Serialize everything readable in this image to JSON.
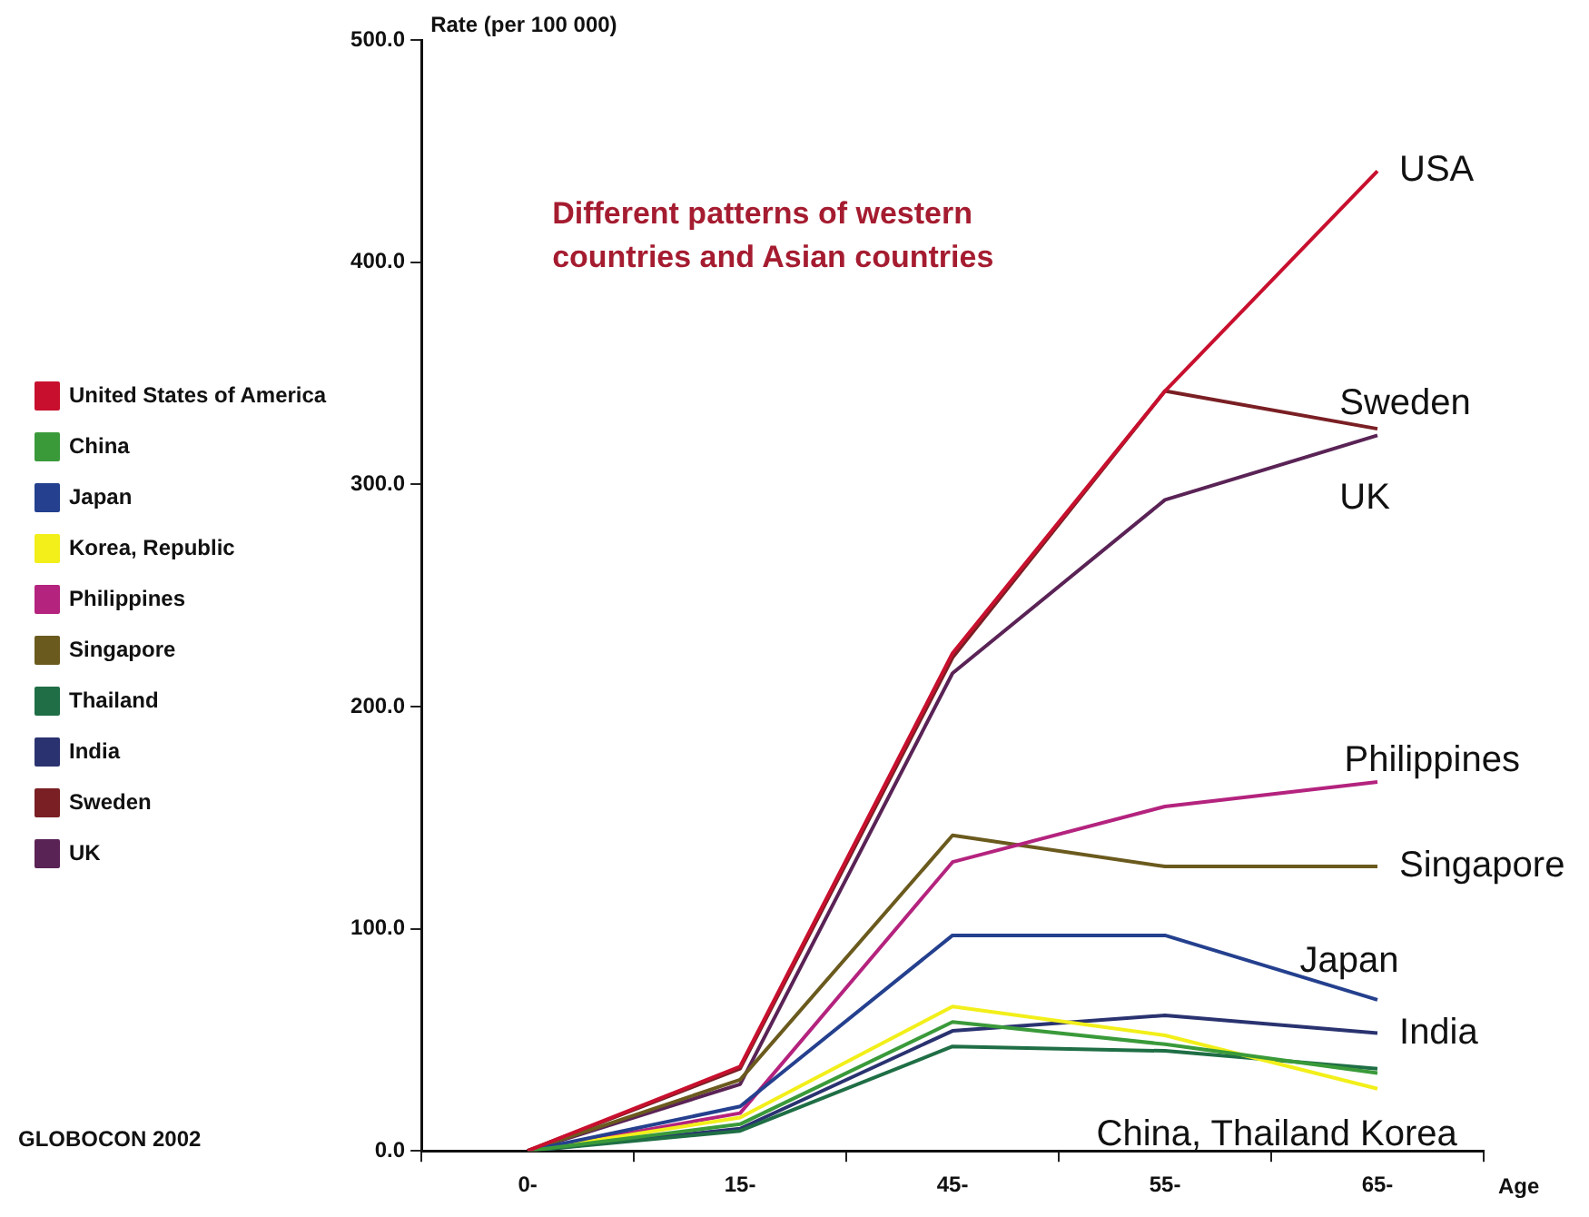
{
  "chart_data": {
    "type": "line",
    "ylabel": "Rate (per 100 000)",
    "xlabel": "Age",
    "categories": [
      "0-",
      "15-",
      "45-",
      "55-",
      "65-"
    ],
    "series": [
      {
        "name": "United States of America",
        "color": "#c8102e",
        "values": [
          0,
          38,
          224,
          342,
          441
        ]
      },
      {
        "name": "China",
        "color": "#3a9a3a",
        "values": [
          0,
          12,
          58,
          48,
          35
        ]
      },
      {
        "name": "Japan",
        "color": "#24408e",
        "values": [
          0,
          20,
          97,
          97,
          68
        ]
      },
      {
        "name": "Korea, Republic",
        "color": "#f2ef1a",
        "values": [
          0,
          15,
          65,
          52,
          28
        ]
      },
      {
        "name": "Philippines",
        "color": "#b4237e",
        "values": [
          0,
          17,
          130,
          155,
          166
        ]
      },
      {
        "name": "Singapore",
        "color": "#6b5a1e",
        "values": [
          0,
          32,
          142,
          128,
          128
        ]
      },
      {
        "name": "Thailand",
        "color": "#1f6e45",
        "values": [
          0,
          9,
          47,
          45,
          37
        ]
      },
      {
        "name": "India",
        "color": "#2a3370",
        "values": [
          0,
          10,
          54,
          61,
          53
        ]
      },
      {
        "name": "Sweden",
        "color": "#7a1f24",
        "values": [
          0,
          37,
          222,
          342,
          325
        ]
      },
      {
        "name": "UK",
        "color": "#5a2356",
        "values": [
          0,
          30,
          215,
          293,
          322
        ]
      }
    ],
    "ylim": [
      0,
      500
    ],
    "yticks": [
      {
        "value": 0,
        "label": "0.0"
      },
      {
        "value": 100,
        "label": "100.0"
      },
      {
        "value": 200,
        "label": "200.0"
      },
      {
        "value": 300,
        "label": "300.0"
      },
      {
        "value": 400,
        "label": "400.0"
      },
      {
        "value": 500,
        "label": "500.0"
      }
    ],
    "grid": false,
    "legend": "left",
    "marker": "none",
    "line_style": "solid",
    "annotations": [
      "Different patterns of western\ncountries and Asian countries",
      "GLOBOCON 2002",
      {
        "text": "USA",
        "x": "65-",
        "y": 441
      },
      "Sweden",
      "UK",
      "Philippines",
      {
        "text": "Singapore",
        "x": "65-",
        "y": 128
      },
      "Japan",
      {
        "text": "India",
        "x": "65-",
        "y": 53
      },
      "China, Thailand Korea"
    ]
  }
}
